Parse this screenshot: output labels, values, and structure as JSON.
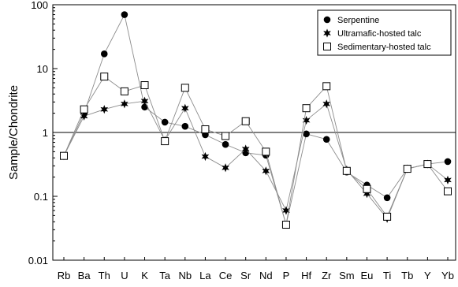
{
  "chart_data": {
    "type": "line",
    "ylabel": "Sample/Chondrite",
    "xlabel": "",
    "yscale": "log",
    "ylim": [
      0.01,
      100
    ],
    "y_ticks": [
      {
        "value": 0.01,
        "label": "0.01"
      },
      {
        "value": 0.1,
        "label": "0.1"
      },
      {
        "value": 1,
        "label": "1"
      },
      {
        "value": 10,
        "label": "10"
      },
      {
        "value": 100,
        "label": "100"
      }
    ],
    "reference_line": 1,
    "grid": false,
    "legend_position": "top-right",
    "categories": [
      "Rb",
      "Ba",
      "Th",
      "U",
      "K",
      "Ta",
      "Nb",
      "La",
      "Ce",
      "Sr",
      "Nd",
      "P",
      "Hf",
      "Zr",
      "Sm",
      "Eu",
      "Ti",
      "Tb",
      "Y",
      "Yb"
    ],
    "series": [
      {
        "name": "Serpentine",
        "marker": "circle",
        "values": [
          0.43,
          2.0,
          17,
          70,
          2.5,
          1.45,
          1.25,
          0.92,
          0.65,
          0.48,
          0.44,
          0.036,
          0.95,
          0.78,
          0.24,
          0.15,
          0.095,
          0.27,
          0.32,
          0.35
        ]
      },
      {
        "name": "Ultramafic-hosted talc",
        "marker": "star",
        "values": [
          0.43,
          1.8,
          2.3,
          2.8,
          3.1,
          0.75,
          2.4,
          0.42,
          0.28,
          0.55,
          0.25,
          0.06,
          1.55,
          2.8,
          0.26,
          0.11,
          0.045,
          0.27,
          0.32,
          0.18
        ]
      },
      {
        "name": "Sedimentary-hosted talc",
        "marker": "open-square",
        "values": [
          0.43,
          2.3,
          7.5,
          4.4,
          5.5,
          0.73,
          5.0,
          1.12,
          0.88,
          1.5,
          0.5,
          0.036,
          2.4,
          5.3,
          0.25,
          0.13,
          0.048,
          0.27,
          0.32,
          0.12
        ]
      }
    ]
  }
}
